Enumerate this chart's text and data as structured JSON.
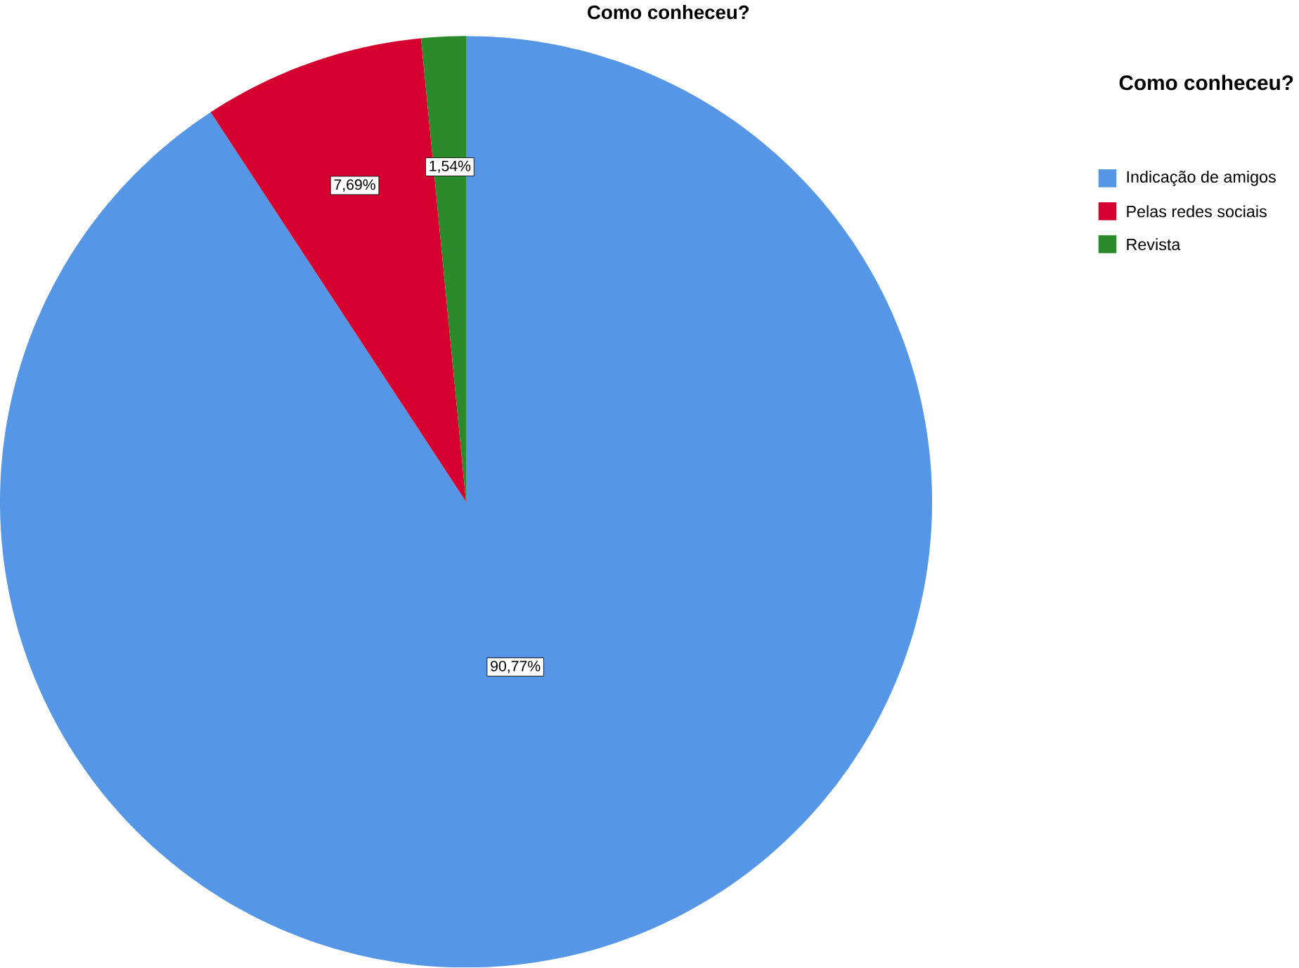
{
  "chart_data": {
    "type": "pie",
    "title": "Como conheceu?",
    "legend_title": "Como conheceu?",
    "categories": [
      "Indicação de amigos",
      "Pelas redes sociais",
      "Revista"
    ],
    "values": [
      90.77,
      7.69,
      1.54
    ],
    "value_labels": [
      "90,77%",
      "7,69%",
      "1,54%"
    ],
    "colors": [
      "#5596e6",
      "#d5002f",
      "#2b8b2b"
    ],
    "legend": "top right"
  }
}
